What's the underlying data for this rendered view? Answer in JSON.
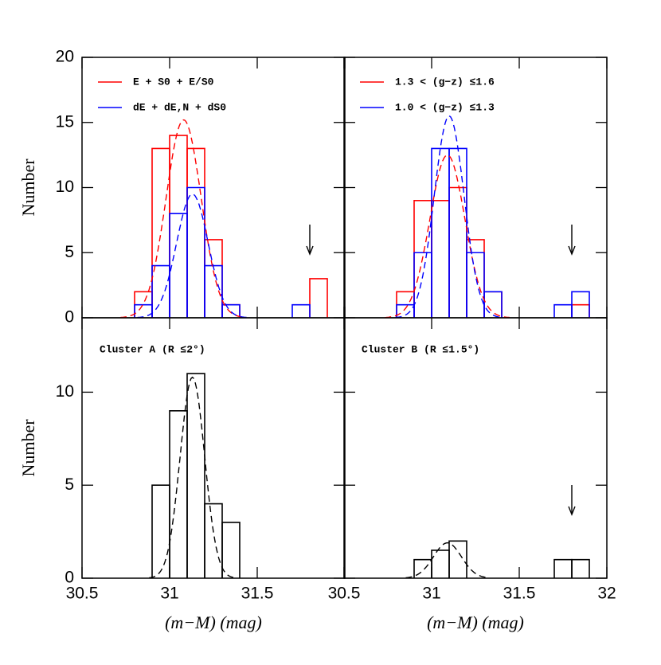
{
  "chart_data": [
    {
      "type": "histogram",
      "ylabel": "Number",
      "bins": [
        30.8,
        30.9,
        31.0,
        31.1,
        31.2,
        31.3,
        31.4,
        31.5,
        31.6,
        31.7,
        31.8,
        31.9
      ],
      "series": [
        {
          "name": "E + S0 + E/S0",
          "color": "#ff0000",
          "values": [
            2,
            13,
            14,
            13,
            6,
            1,
            0,
            0,
            0,
            0,
            3
          ]
        },
        {
          "name": "dE + dE,N + dS0",
          "color": "#0000ff",
          "values": [
            1,
            4,
            8,
            10,
            4,
            1,
            0,
            0,
            0,
            1,
            0
          ]
        }
      ],
      "fits": [
        {
          "color": "#ff0000",
          "mean": 31.08,
          "sigma": 0.1,
          "peak": 15.2
        },
        {
          "color": "#0000ff",
          "mean": 31.13,
          "sigma": 0.09,
          "peak": 9.5
        }
      ],
      "arrow": 31.8,
      "xlim": [
        30.5,
        32
      ],
      "xticks": [
        30.5,
        31,
        31.5,
        32
      ],
      "ylim": [
        0,
        20
      ],
      "yticks": [
        0,
        5,
        10,
        15,
        20
      ]
    },
    {
      "type": "histogram",
      "bins": [
        30.8,
        30.9,
        31.0,
        31.1,
        31.2,
        31.3,
        31.4,
        31.5,
        31.6,
        31.7,
        31.8,
        31.9
      ],
      "series": [
        {
          "name": "1.3 < (g−z) ≤1.6",
          "color": "#ff0000",
          "values": [
            2,
            9,
            9,
            10,
            6,
            2,
            0,
            0,
            0,
            0,
            1
          ]
        },
        {
          "name": "1.0 < (g−z) ≤1.3",
          "color": "#0000ff",
          "values": [
            1,
            5,
            13,
            13,
            5,
            2,
            0,
            0,
            0,
            1,
            2
          ]
        }
      ],
      "fits": [
        {
          "color": "#ff0000",
          "mean": 31.09,
          "sigma": 0.1,
          "peak": 12.5
        },
        {
          "color": "#0000ff",
          "mean": 31.1,
          "sigma": 0.085,
          "peak": 15.5
        }
      ],
      "arrow": 31.8,
      "xlim": [
        30.5,
        32
      ],
      "xticks": [
        30.5,
        31,
        31.5,
        32
      ],
      "ylim": [
        0,
        20
      ],
      "yticks": [
        0,
        5,
        10,
        15,
        20
      ]
    },
    {
      "type": "histogram",
      "title": "Cluster A (R ≤2°)",
      "ylabel": "Number",
      "xlabel": "(m−M)  (mag)",
      "bins": [
        30.9,
        31.0,
        31.1,
        31.2,
        31.3,
        31.4
      ],
      "series": [
        {
          "color": "#000000",
          "values": [
            5,
            9,
            11,
            4,
            3
          ]
        }
      ],
      "fits": [
        {
          "color": "#000000",
          "mean": 31.13,
          "sigma": 0.07,
          "peak": 10.8
        }
      ],
      "xlim": [
        30.5,
        32
      ],
      "xticks": [
        30.5,
        31,
        31.5
      ],
      "ylim": [
        0,
        14
      ],
      "yticks": [
        0,
        5,
        10
      ]
    },
    {
      "type": "histogram",
      "title": "Cluster B (R ≤1.5°)",
      "xlabel": "(m−M)  (mag)",
      "bins": [
        30.9,
        31.0,
        31.1,
        31.2,
        31.3,
        31.4,
        31.5,
        31.6,
        31.7,
        31.8,
        31.9
      ],
      "series": [
        {
          "color": "#000000",
          "values": [
            1,
            1.5,
            2,
            0,
            0,
            0,
            0,
            0,
            1,
            1
          ]
        }
      ],
      "fits": [
        {
          "color": "#000000",
          "mean": 31.09,
          "sigma": 0.08,
          "peak": 1.9
        }
      ],
      "arrow": 31.8,
      "xlim": [
        30.5,
        32
      ],
      "xticks": [
        30.5,
        31,
        31.5,
        32
      ],
      "ylim": [
        0,
        14
      ],
      "yticks": [
        0,
        5,
        10
      ]
    }
  ]
}
